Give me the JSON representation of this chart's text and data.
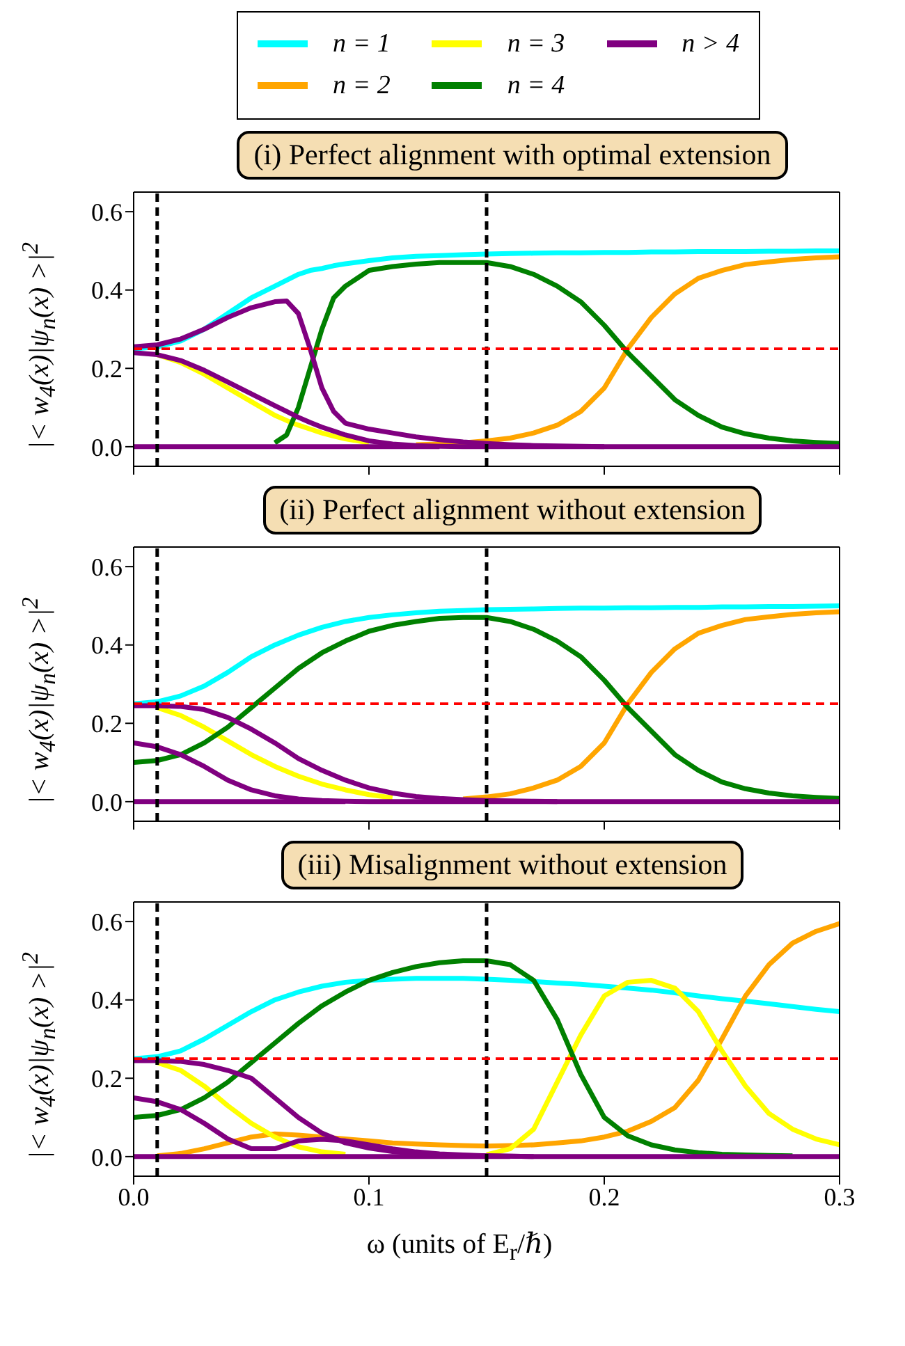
{
  "chart_data": [
    {
      "type": "line",
      "title": "(i) Perfect alignment with optimal extension",
      "ylabel": "|< w$_{4}$(x)|ψ$_{n}$(x) >|$^{2}$",
      "legend": "top",
      "tick_labels": "y",
      "x": [
        0,
        0.01,
        0.02,
        0.03,
        0.04,
        0.05,
        0.06,
        0.065,
        0.07,
        0.075,
        0.08,
        0.085,
        0.09,
        0.1,
        0.11,
        0.12,
        0.13,
        0.14,
        0.15,
        0.16,
        0.17,
        0.18,
        0.19,
        0.2,
        0.21,
        0.22,
        0.23,
        0.24,
        0.25,
        0.26,
        0.27,
        0.28,
        0.29,
        0.3
      ],
      "xlim": [
        0,
        0.3
      ],
      "xticks": [
        {
          "value": 0,
          "label": null
        },
        {
          "value": 0.1,
          "label": null
        },
        {
          "value": 0.2,
          "label": null
        },
        {
          "value": 0.3,
          "label": null
        }
      ],
      "ylim": [
        -0.05,
        0.65
      ],
      "yticks": [
        {
          "value": 0,
          "label": "0.0"
        },
        {
          "value": 0.2,
          "label": "0.2"
        },
        {
          "value": 0.4,
          "label": "0.4"
        },
        {
          "value": 0.6,
          "label": "0.6"
        }
      ],
      "ref_lines": [
        {
          "axis": "x",
          "value": 0.01,
          "color": "#000000",
          "line_style": "dashed"
        },
        {
          "axis": "x",
          "value": 0.15,
          "color": "#000000",
          "line_style": "dashed"
        },
        {
          "axis": "y",
          "value": 0.25,
          "color": "#ff0000",
          "line_style": "dashed"
        }
      ],
      "series": [
        {
          "name": "n = 1",
          "color": "#00ffff",
          "values": [
            0.25,
            0.255,
            0.27,
            0.3,
            0.34,
            0.38,
            0.41,
            0.425,
            0.44,
            0.45,
            0.455,
            0.462,
            0.467,
            0.475,
            0.482,
            0.486,
            0.488,
            0.49,
            0.492,
            0.493,
            0.494,
            0.495,
            0.495,
            0.496,
            0.496,
            0.497,
            0.497,
            0.498,
            0.498,
            0.498,
            0.499,
            0.499,
            0.5,
            0.5
          ]
        },
        {
          "name": "n = 2",
          "color": "#ffa500",
          "values": [
            null,
            null,
            null,
            null,
            null,
            null,
            null,
            null,
            null,
            null,
            null,
            null,
            null,
            null,
            null,
            0.005,
            0.007,
            0.01,
            0.015,
            0.022,
            0.035,
            0.055,
            0.09,
            0.15,
            0.25,
            0.33,
            0.39,
            0.43,
            0.45,
            0.465,
            0.472,
            0.478,
            0.482,
            0.485
          ]
        },
        {
          "name": "n = 3",
          "color": "#ffff00",
          "values": [
            null,
            0.235,
            0.215,
            0.185,
            0.15,
            0.115,
            0.08,
            0.067,
            0.055,
            0.045,
            0.035,
            0.027,
            0.02,
            0.01,
            null,
            null,
            null,
            null,
            null,
            null,
            null,
            null,
            null,
            null,
            null,
            null,
            null,
            null,
            null,
            null,
            null,
            null,
            null,
            null
          ]
        },
        {
          "name": "n = 4",
          "color": "#008000",
          "values": [
            null,
            null,
            null,
            null,
            null,
            null,
            0.01,
            0.03,
            0.1,
            0.2,
            0.3,
            0.38,
            0.41,
            0.45,
            0.46,
            0.466,
            0.47,
            0.47,
            0.47,
            0.46,
            0.44,
            0.41,
            0.37,
            0.31,
            0.24,
            0.18,
            0.12,
            0.08,
            0.05,
            0.033,
            0.022,
            0.015,
            0.011,
            0.008
          ]
        },
        {
          "name": "n > 4",
          "color": "#800080",
          "values": [
            0.255,
            0.26,
            0.275,
            0.3,
            0.33,
            0.355,
            0.37,
            0.372,
            0.34,
            0.25,
            0.15,
            0.09,
            0.06,
            0.045,
            0.035,
            0.025,
            0.018,
            0.012,
            0.008,
            0.005,
            0.003,
            0.002,
            0.001,
            0,
            null,
            null,
            null,
            null,
            null,
            null,
            null,
            null,
            null,
            null
          ]
        },
        {
          "color": "#800080",
          "values": [
            0.24,
            0.235,
            0.22,
            0.195,
            0.165,
            0.135,
            0.105,
            0.09,
            0.075,
            0.062,
            0.05,
            0.04,
            0.03,
            0.015,
            0.007,
            0.003,
            0.001,
            0,
            0,
            0,
            0,
            0,
            0,
            0,
            0,
            0,
            0,
            0,
            0,
            0,
            0,
            0,
            0,
            0
          ]
        },
        {
          "color": "#800080",
          "values": [
            0,
            0,
            0,
            0,
            0,
            0,
            0,
            0,
            0,
            0,
            0,
            0,
            0,
            0,
            0,
            0,
            0,
            null,
            null,
            null,
            null,
            null,
            null,
            null,
            null,
            null,
            null,
            null,
            null,
            null,
            null,
            null,
            null,
            null
          ]
        }
      ]
    },
    {
      "type": "line",
      "title": "(ii) Perfect alignment without extension",
      "ylabel": "|< w$_{4}$(x)|ψ$_{n}$(x) >|$^{2}$",
      "tick_labels": "y",
      "x": [
        0,
        0.01,
        0.02,
        0.03,
        0.04,
        0.05,
        0.06,
        0.07,
        0.08,
        0.09,
        0.1,
        0.11,
        0.12,
        0.13,
        0.14,
        0.15,
        0.16,
        0.17,
        0.18,
        0.19,
        0.2,
        0.21,
        0.22,
        0.23,
        0.24,
        0.25,
        0.26,
        0.27,
        0.28,
        0.29,
        0.3
      ],
      "xlim": [
        0,
        0.3
      ],
      "xticks": [
        {
          "value": 0,
          "label": null
        },
        {
          "value": 0.1,
          "label": null
        },
        {
          "value": 0.2,
          "label": null
        },
        {
          "value": 0.3,
          "label": null
        }
      ],
      "ylim": [
        -0.05,
        0.65
      ],
      "yticks": [
        {
          "value": 0,
          "label": "0.0"
        },
        {
          "value": 0.2,
          "label": "0.2"
        },
        {
          "value": 0.4,
          "label": "0.4"
        },
        {
          "value": 0.6,
          "label": "0.6"
        }
      ],
      "ref_lines": [
        {
          "axis": "x",
          "value": 0.01,
          "color": "#000000",
          "line_style": "dashed"
        },
        {
          "axis": "x",
          "value": 0.15,
          "color": "#000000",
          "line_style": "dashed"
        },
        {
          "axis": "y",
          "value": 0.25,
          "color": "#ff0000",
          "line_style": "dashed"
        }
      ],
      "series": [
        {
          "color": "#00ffff",
          "values": [
            0.25,
            0.255,
            0.27,
            0.295,
            0.33,
            0.37,
            0.4,
            0.425,
            0.445,
            0.46,
            0.47,
            0.477,
            0.482,
            0.486,
            0.488,
            0.49,
            0.491,
            0.492,
            0.493,
            0.494,
            0.494,
            0.495,
            0.495,
            0.496,
            0.496,
            0.497,
            0.497,
            0.498,
            0.498,
            0.499,
            0.5
          ]
        },
        {
          "color": "#ffa500",
          "values": [
            null,
            null,
            null,
            null,
            null,
            null,
            null,
            null,
            null,
            null,
            null,
            null,
            null,
            null,
            0.007,
            0.012,
            0.02,
            0.035,
            0.055,
            0.09,
            0.15,
            0.25,
            0.33,
            0.39,
            0.43,
            0.45,
            0.465,
            0.472,
            0.478,
            0.482,
            0.485
          ]
        },
        {
          "color": "#ffff00",
          "values": [
            null,
            0.24,
            0.22,
            0.19,
            0.155,
            0.12,
            0.09,
            0.065,
            0.045,
            0.03,
            0.018,
            0.01,
            null,
            null,
            null,
            null,
            null,
            null,
            null,
            null,
            null,
            null,
            null,
            null,
            null,
            null,
            null,
            null,
            null,
            null,
            null
          ]
        },
        {
          "color": "#008000",
          "values": [
            0.1,
            0.105,
            0.12,
            0.15,
            0.19,
            0.24,
            0.29,
            0.34,
            0.38,
            0.41,
            0.435,
            0.45,
            0.46,
            0.468,
            0.47,
            0.47,
            0.46,
            0.44,
            0.41,
            0.37,
            0.31,
            0.24,
            0.18,
            0.12,
            0.08,
            0.05,
            0.033,
            0.022,
            0.015,
            0.011,
            0.008
          ]
        },
        {
          "color": "#800080",
          "values": [
            0.245,
            0.245,
            0.243,
            0.235,
            0.215,
            0.185,
            0.15,
            0.11,
            0.08,
            0.055,
            0.035,
            0.022,
            0.013,
            0.008,
            0.005,
            0.003,
            0.002,
            0.001,
            0,
            null,
            null,
            null,
            null,
            null,
            null,
            null,
            null,
            null,
            null,
            null,
            null
          ]
        },
        {
          "color": "#800080",
          "values": [
            0.15,
            0.14,
            0.12,
            0.09,
            0.055,
            0.03,
            0.015,
            0.007,
            0.003,
            0.001,
            0,
            0,
            0,
            0,
            0,
            0,
            0,
            0,
            0,
            0,
            0,
            0,
            0,
            0,
            0,
            0,
            0,
            0,
            0,
            0,
            0
          ]
        },
        {
          "color": "#800080",
          "values": [
            0,
            0,
            0,
            0,
            0,
            0,
            0,
            0,
            0,
            0,
            null,
            null,
            null,
            null,
            null,
            null,
            null,
            null,
            null,
            null,
            null,
            null,
            null,
            null,
            null,
            null,
            null,
            null,
            null,
            null,
            null
          ]
        }
      ]
    },
    {
      "type": "line",
      "title": "(iii) Misalignment without extension",
      "ylabel": "|< w$_{4}$(x)|ψ$_{n}$(x) >|$^{2}$",
      "xlabel": "ω (units of E$_{r}$/ℏ)",
      "x": [
        0,
        0.01,
        0.02,
        0.03,
        0.04,
        0.05,
        0.06,
        0.07,
        0.08,
        0.09,
        0.1,
        0.11,
        0.12,
        0.13,
        0.14,
        0.15,
        0.16,
        0.17,
        0.18,
        0.19,
        0.2,
        0.21,
        0.22,
        0.23,
        0.24,
        0.25,
        0.26,
        0.27,
        0.28,
        0.29,
        0.3
      ],
      "xlim": [
        0,
        0.3
      ],
      "xticks": [
        {
          "value": 0,
          "label": "0.0"
        },
        {
          "value": 0.1,
          "label": "0.1"
        },
        {
          "value": 0.2,
          "label": "0.2"
        },
        {
          "value": 0.3,
          "label": "0.3"
        }
      ],
      "ylim": [
        -0.05,
        0.65
      ],
      "yticks": [
        {
          "value": 0,
          "label": "0.0"
        },
        {
          "value": 0.2,
          "label": "0.2"
        },
        {
          "value": 0.4,
          "label": "0.4"
        },
        {
          "value": 0.6,
          "label": "0.6"
        }
      ],
      "ref_lines": [
        {
          "axis": "x",
          "value": 0.01,
          "color": "#000000",
          "line_style": "dashed"
        },
        {
          "axis": "x",
          "value": 0.15,
          "color": "#000000",
          "line_style": "dashed"
        },
        {
          "axis": "y",
          "value": 0.25,
          "color": "#ff0000",
          "line_style": "dashed"
        }
      ],
      "series": [
        {
          "color": "#00ffff",
          "values": [
            0.25,
            0.255,
            0.27,
            0.3,
            0.335,
            0.37,
            0.4,
            0.42,
            0.435,
            0.445,
            0.45,
            0.453,
            0.455,
            0.455,
            0.455,
            0.453,
            0.45,
            0.447,
            0.443,
            0.44,
            0.435,
            0.43,
            0.425,
            0.418,
            0.41,
            0.403,
            0.397,
            0.39,
            0.383,
            0.376,
            0.37
          ]
        },
        {
          "color": "#ffa500",
          "values": [
            null,
            0.002,
            0.008,
            0.02,
            0.035,
            0.05,
            0.058,
            0.055,
            0.05,
            0.045,
            0.04,
            0.035,
            0.032,
            0.03,
            0.028,
            0.027,
            0.028,
            0.03,
            0.035,
            0.04,
            0.05,
            0.065,
            0.09,
            0.125,
            0.195,
            0.3,
            0.41,
            0.49,
            0.545,
            0.575,
            0.595
          ]
        },
        {
          "color": "#ffff00",
          "values": [
            null,
            0.24,
            0.22,
            0.18,
            0.13,
            0.085,
            0.05,
            0.025,
            0.012,
            0.006,
            null,
            null,
            null,
            null,
            null,
            0.005,
            0.02,
            0.07,
            0.19,
            0.31,
            0.41,
            0.445,
            0.45,
            0.43,
            0.37,
            0.27,
            0.18,
            0.11,
            0.07,
            0.045,
            0.03
          ]
        },
        {
          "color": "#008000",
          "values": [
            0.1,
            0.105,
            0.12,
            0.15,
            0.19,
            0.24,
            0.29,
            0.34,
            0.385,
            0.42,
            0.45,
            0.47,
            0.485,
            0.495,
            0.5,
            0.5,
            0.49,
            0.45,
            0.35,
            0.21,
            0.1,
            0.053,
            0.03,
            0.017,
            0.01,
            0.006,
            0.004,
            0.003,
            0.002,
            null,
            null
          ]
        },
        {
          "color": "#800080",
          "values": [
            0.245,
            0.245,
            0.243,
            0.235,
            0.22,
            0.2,
            0.15,
            0.1,
            0.06,
            0.035,
            0.022,
            0.013,
            0.008,
            0.005,
            0.003,
            0.002,
            0.001,
            0,
            null,
            null,
            null,
            null,
            null,
            null,
            null,
            null,
            null,
            null,
            null,
            null,
            null
          ]
        },
        {
          "color": "#800080",
          "values": [
            0.15,
            0.14,
            0.12,
            0.085,
            0.045,
            0.02,
            0.02,
            0.04,
            0.044,
            0.04,
            0.03,
            0.02,
            0.012,
            0.007,
            0.004,
            0.002,
            0.001,
            0,
            0,
            0,
            0,
            0,
            0,
            0,
            0,
            0,
            0,
            0,
            0,
            0,
            0
          ]
        },
        {
          "color": "#800080",
          "values": [
            0,
            0,
            0,
            0,
            0,
            0,
            0,
            0,
            0,
            0,
            0,
            0,
            0,
            0,
            0,
            0,
            0,
            null,
            null,
            null,
            null,
            null,
            null,
            null,
            null,
            null,
            null,
            null,
            null,
            null,
            null
          ]
        }
      ]
    }
  ]
}
